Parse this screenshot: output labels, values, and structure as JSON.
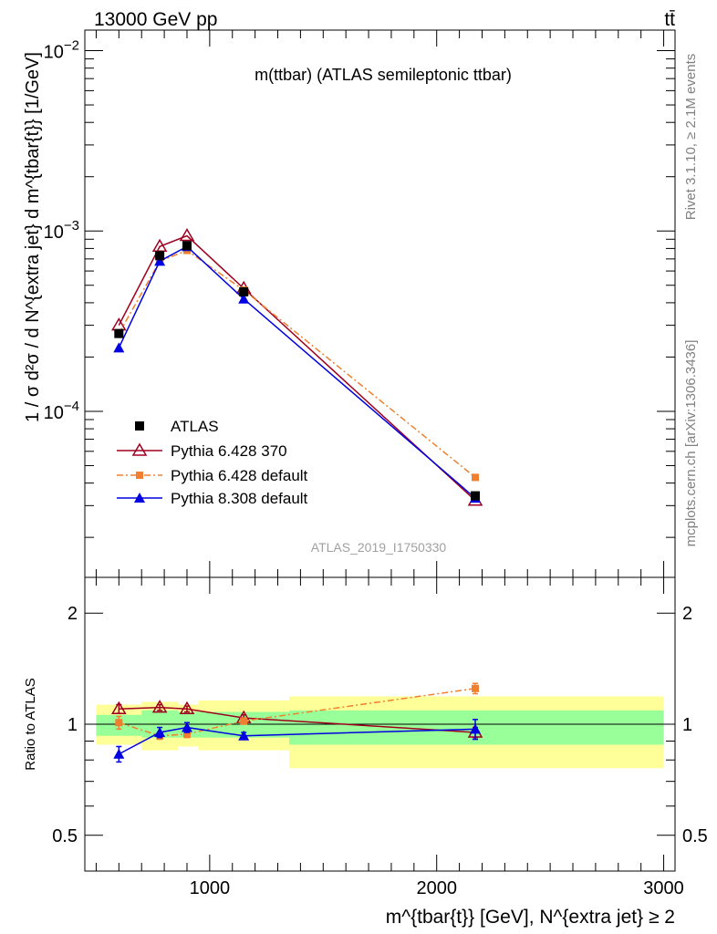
{
  "header": {
    "left": "13000 GeV pp",
    "right": "tt̄"
  },
  "side": {
    "rivet": "Rivet 3.1.10, ≥ 2.1M events",
    "mcplots": "mcplots.cern.ch [arXiv:1306.3436]"
  },
  "chart_data": [
    {
      "type": "line",
      "title": "m(ttbar) (ATLAS semileptonic ttbar)",
      "watermark": "ATLAS_2019_I1750330",
      "ylabel": "1 / σ d²σ / d N^{extra jet} d m^{tbar{t}} [1/GeV]",
      "yscale": "log",
      "xlim": [
        450,
        3050
      ],
      "ylim": [
        1.2e-05,
        0.013
      ],
      "ytick_labels": [
        {
          "value": 0.01,
          "mant": "10",
          "exp": "−2"
        },
        {
          "value": 0.001,
          "mant": "10",
          "exp": "−3"
        },
        {
          "value": 0.0001,
          "mant": "10",
          "exp": "−4"
        }
      ],
      "legend": [
        "ATLAS",
        "Pythia 6.428 370",
        "Pythia 6.428 default",
        "Pythia 8.308 default"
      ],
      "x": [
        600,
        780,
        900,
        1150,
        2170
      ],
      "series": [
        {
          "name": "ATLAS",
          "color": "#000000",
          "marker": "square",
          "values": [
            0.00027,
            0.00073,
            0.00083,
            0.00046,
            3.4e-05
          ]
        },
        {
          "name": "Pythia 6.428 370",
          "color": "#a00020",
          "marker": "triangle-open",
          "values": [
            0.0003,
            0.00082,
            0.00094,
            0.00048,
            3.2e-05
          ]
        },
        {
          "name": "Pythia 6.428 default",
          "color": "#f08030",
          "marker": "square-small",
          "values": [
            0.00027,
            0.00068,
            0.00078,
            0.00047,
            4.3e-05
          ]
        },
        {
          "name": "Pythia 8.308 default",
          "color": "#0000e0",
          "marker": "triangle",
          "values": [
            0.000225,
            0.00068,
            0.00082,
            0.00042,
            3.3e-05
          ]
        }
      ]
    },
    {
      "type": "line",
      "ylabel": "Ratio to ATLAS",
      "yscale": "log",
      "ylim": [
        0.4,
        2.5
      ],
      "xlim": [
        450,
        3050
      ],
      "xlabel": "m^{tbar{t}} [GeV], N^{extra jet} ≥ 2",
      "xtick_labels": [
        {
          "value": 1000,
          "label": "1000"
        },
        {
          "value": 2000,
          "label": "2000"
        },
        {
          "value": 3000,
          "label": "3000"
        }
      ],
      "ytick_labels": [
        {
          "value": 2,
          "label": "2"
        },
        {
          "value": 1,
          "label": "1"
        },
        {
          "value": 0.5,
          "label": "0.5"
        }
      ],
      "bands": [
        {
          "x0": 500,
          "x1": 700,
          "green": [
            0.93,
            1.06
          ],
          "yellow": [
            0.88,
            1.13
          ]
        },
        {
          "x0": 700,
          "x1": 860,
          "green": [
            0.92,
            1.09
          ],
          "yellow": [
            0.85,
            1.15
          ]
        },
        {
          "x0": 860,
          "x1": 950,
          "green": [
            0.92,
            1.08
          ],
          "yellow": [
            0.87,
            1.13
          ]
        },
        {
          "x0": 950,
          "x1": 1350,
          "green": [
            0.92,
            1.08
          ],
          "yellow": [
            0.85,
            1.16
          ]
        },
        {
          "x0": 1350,
          "x1": 3000,
          "green": [
            0.88,
            1.09
          ],
          "yellow": [
            0.76,
            1.19
          ]
        }
      ],
      "x": [
        600,
        780,
        900,
        1150,
        2170
      ],
      "series": [
        {
          "name": "Pythia 6.428 370",
          "color": "#a00020",
          "marker": "triangle-open",
          "values": [
            1.1,
            1.11,
            1.1,
            1.04,
            0.95
          ],
          "err": [
            0.03,
            0.02,
            0.02,
            0.02,
            0.03
          ]
        },
        {
          "name": "Pythia 6.428 default",
          "color": "#f08030",
          "marker": "square-small",
          "values": [
            1.01,
            0.93,
            0.94,
            1.02,
            1.25
          ],
          "err": [
            0.04,
            0.02,
            0.02,
            0.02,
            0.04
          ]
        },
        {
          "name": "Pythia 8.308 default",
          "color": "#0000e0",
          "marker": "triangle",
          "values": [
            0.83,
            0.95,
            0.98,
            0.93,
            0.97
          ],
          "err": [
            0.04,
            0.03,
            0.03,
            0.02,
            0.06
          ]
        }
      ]
    }
  ]
}
